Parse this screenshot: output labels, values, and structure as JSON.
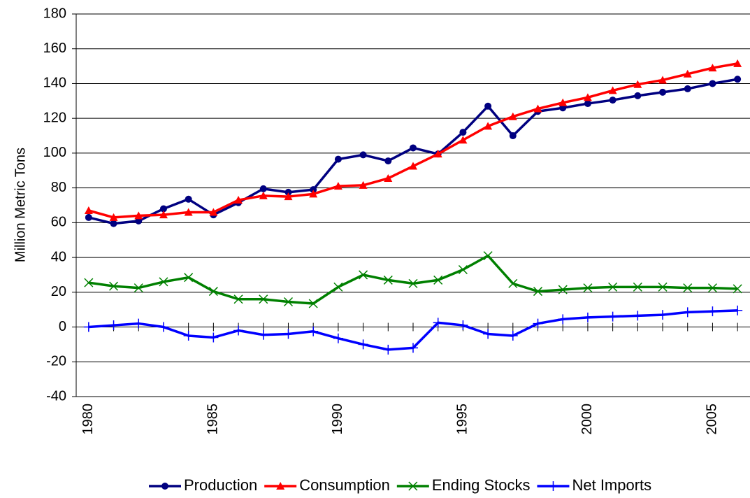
{
  "chart_data": {
    "type": "line",
    "y_label": "Million Metric Tons",
    "x": [
      1980,
      1981,
      1982,
      1983,
      1984,
      1985,
      1986,
      1987,
      1988,
      1989,
      1990,
      1991,
      1992,
      1993,
      1994,
      1995,
      1996,
      1997,
      1998,
      1999,
      2000,
      2001,
      2002,
      2003,
      2004,
      2005,
      2006
    ],
    "xlim": [
      1979.5,
      2006.5
    ],
    "xticks": [
      1980,
      1985,
      1990,
      1995,
      2000,
      2005
    ],
    "ylim": [
      -40,
      180
    ],
    "yticks": [
      -40,
      -20,
      0,
      20,
      40,
      60,
      80,
      100,
      120,
      140,
      160,
      180
    ],
    "grid": true,
    "legend": "bottom",
    "series": [
      {
        "name": "Production",
        "color": "#000080",
        "marker": "circle",
        "values": [
          63,
          59.5,
          61,
          68,
          73.5,
          64.5,
          71.5,
          79.5,
          77.5,
          79,
          96.5,
          99,
          95.5,
          103,
          99.5,
          112,
          127,
          110,
          124,
          126,
          128.5,
          130.5,
          133,
          135,
          137,
          140,
          142.5
        ]
      },
      {
        "name": "Consumption",
        "color": "#ff0000",
        "marker": "triangle",
        "values": [
          67,
          63,
          64,
          64.5,
          66,
          66,
          73,
          75.5,
          75,
          76.5,
          81,
          81.5,
          85.5,
          92.5,
          99.5,
          107.5,
          115.5,
          121,
          125.5,
          129,
          132,
          136,
          139.5,
          142,
          145.5,
          149,
          151.5
        ]
      },
      {
        "name": "Ending Stocks",
        "color": "#008000",
        "marker": "x",
        "values": [
          25.5,
          23.5,
          22.5,
          26,
          28.5,
          20.5,
          16,
          16,
          14.5,
          13.5,
          23,
          30,
          27,
          25,
          27,
          33,
          41,
          25,
          20.5,
          21.5,
          22.5,
          23,
          23,
          23,
          22.5,
          22.5,
          22
        ]
      },
      {
        "name": "Net Imports",
        "color": "#0000ff",
        "marker": "plus",
        "values": [
          0,
          1,
          2,
          0,
          -5,
          -6,
          -2,
          -4.5,
          -4,
          -2.5,
          -6.5,
          -10,
          -13,
          -12,
          2.5,
          1,
          -4,
          -5,
          2,
          4.5,
          5.5,
          6,
          6.5,
          7,
          8.5,
          9,
          9.5
        ]
      }
    ]
  }
}
